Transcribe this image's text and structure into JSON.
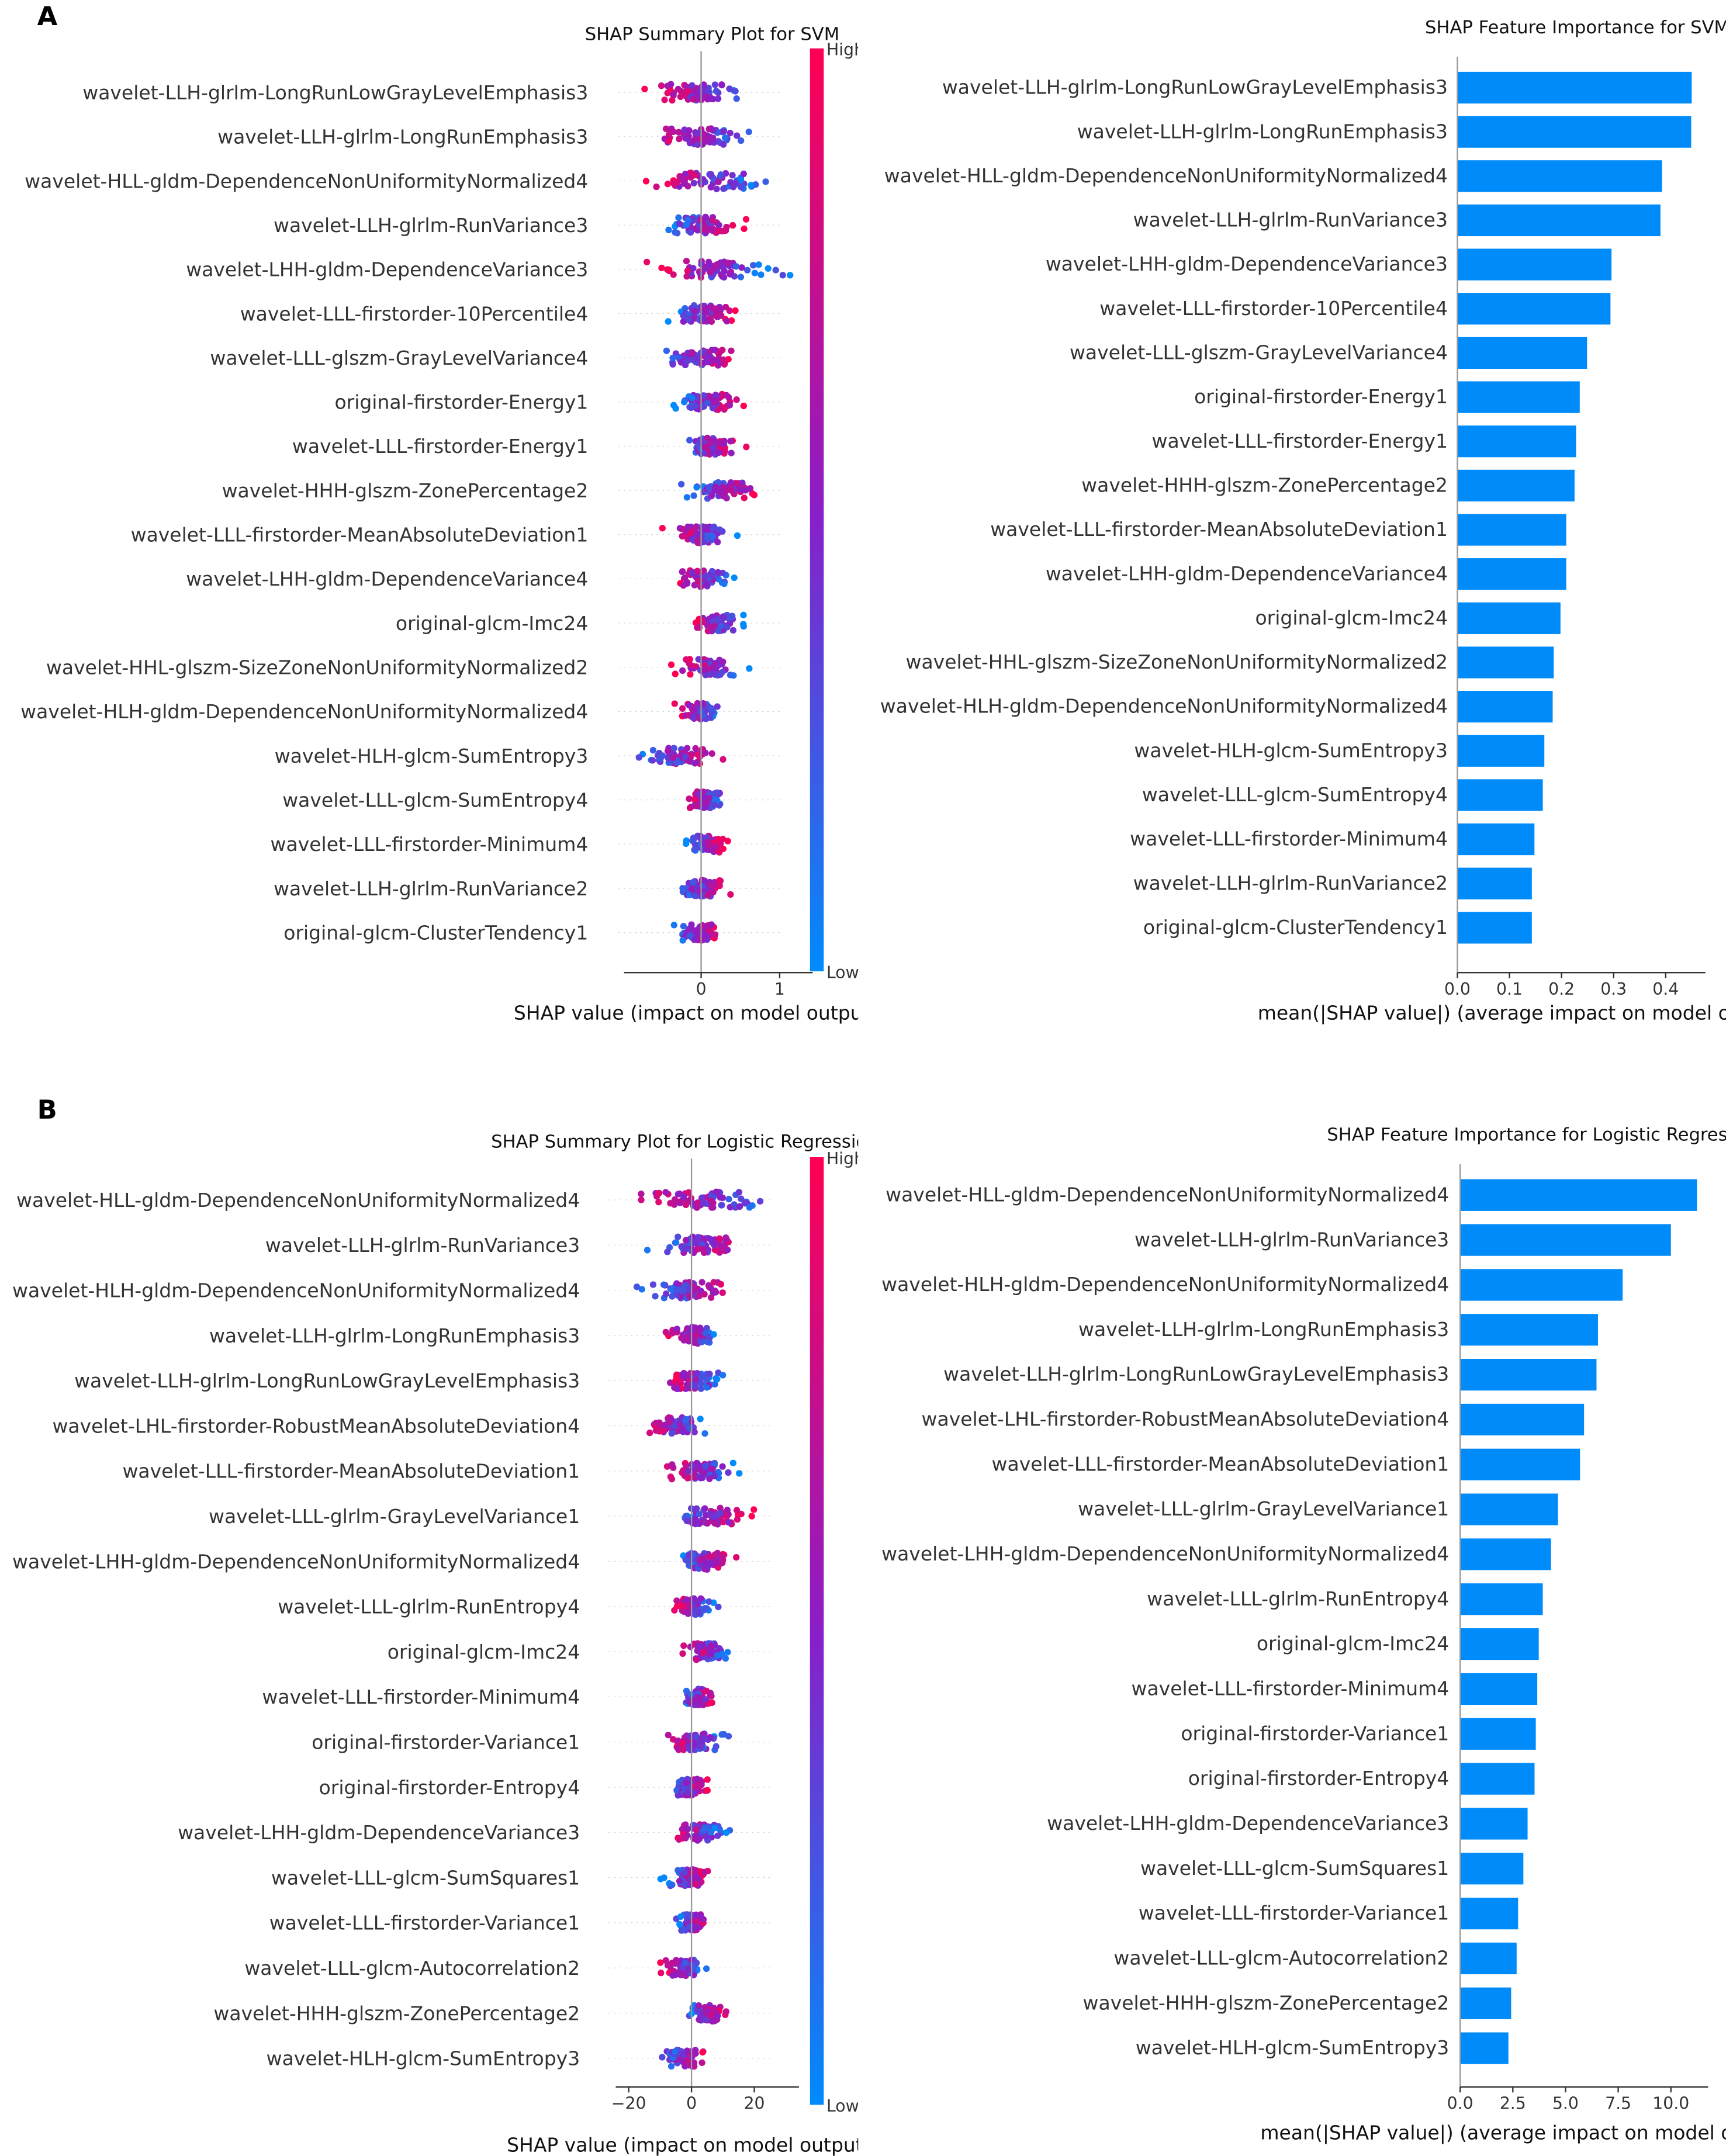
{
  "colors": {
    "low": "#008bfb",
    "mid": "#8a1ec8",
    "high": "#ff0052",
    "bar": "#008bfb"
  },
  "chart_data": [
    {
      "panel": "A",
      "type": "scatter",
      "title": "SHAP Summary Plot for SVM",
      "xlabel": "SHAP value (impact on model output)",
      "xlim": [
        -1,
        1.3
      ],
      "ticks": [
        "0",
        "1"
      ],
      "tick_values": [
        0,
        1
      ],
      "colorbar": {
        "high": "High",
        "low": "Low"
      },
      "features": [
        "wavelet-LLH-glrlm-LongRunLowGrayLevelEmphasis3",
        "wavelet-LLH-glrlm-LongRunEmphasis3",
        "wavelet-HLL-gldm-DependenceNonUniformityNormalized4",
        "wavelet-LLH-glrlm-RunVariance3",
        "wavelet-LHH-gldm-DependenceVariance3",
        "wavelet-LLL-firstorder-10Percentile4",
        "wavelet-LLL-glszm-GrayLevelVariance4",
        "original-firstorder-Energy1",
        "wavelet-LLL-firstorder-Energy1",
        "wavelet-HHH-glszm-ZonePercentage2",
        "wavelet-LLL-firstorder-MeanAbsoluteDeviation1",
        "wavelet-LHH-gldm-DependenceVariance4",
        "original-glcm-Imc24",
        "wavelet-HHL-glszm-SizeZoneNonUniformityNormalized2",
        "wavelet-HLH-gldm-DependenceNonUniformityNormalized4",
        "wavelet-HLH-glcm-SumEntropy3",
        "wavelet-LLL-glcm-SumEntropy4",
        "wavelet-LLL-firstorder-Minimum4",
        "wavelet-LLH-glrlm-RunVariance2",
        "original-glcm-ClusterTendency1"
      ],
      "ranges": [
        [
          -0.72,
          0.67
        ],
        [
          -0.72,
          0.67
        ],
        [
          -0.75,
          1.0
        ],
        [
          -0.6,
          0.65
        ],
        [
          -0.8,
          1.15
        ],
        [
          -0.5,
          0.55
        ],
        [
          -0.6,
          0.5
        ],
        [
          -0.4,
          0.6
        ],
        [
          -0.4,
          0.6
        ],
        [
          -0.3,
          0.9
        ],
        [
          -0.5,
          0.5
        ],
        [
          -0.45,
          0.5
        ],
        [
          -0.2,
          0.55
        ],
        [
          -0.45,
          0.65
        ],
        [
          -0.35,
          0.35
        ],
        [
          -0.9,
          0.35
        ],
        [
          -0.25,
          0.35
        ],
        [
          -0.2,
          0.35
        ],
        [
          -0.4,
          0.45
        ],
        [
          -0.45,
          0.35
        ]
      ],
      "high_side": [
        "neg",
        "neg",
        "neg",
        "pos",
        "neg",
        "pos",
        "pos",
        "pos",
        "pos",
        "pos",
        "neg",
        "neg",
        "neg",
        "neg",
        "neg",
        "pos",
        "neg",
        "pos",
        "pos",
        "pos"
      ]
    },
    {
      "panel": "A",
      "type": "bar",
      "title": "SHAP Feature Importance for SVM",
      "xlabel": "mean(|SHAP value|) (average impact on model output magnitude)",
      "xlim": [
        0,
        0.47
      ],
      "ticks": [
        "0.0",
        "0.1",
        "0.2",
        "0.3",
        "0.4"
      ],
      "tick_values": [
        0,
        0.1,
        0.2,
        0.3,
        0.4
      ],
      "features": [
        "wavelet-LLH-glrlm-LongRunLowGrayLevelEmphasis3",
        "wavelet-LLH-glrlm-LongRunEmphasis3",
        "wavelet-HLL-gldm-DependenceNonUniformityNormalized4",
        "wavelet-LLH-glrlm-RunVariance3",
        "wavelet-LHH-gldm-DependenceVariance3",
        "wavelet-LLL-firstorder-10Percentile4",
        "wavelet-LLL-glszm-GrayLevelVariance4",
        "original-firstorder-Energy1",
        "wavelet-LLL-firstorder-Energy1",
        "wavelet-HHH-glszm-ZonePercentage2",
        "wavelet-LLL-firstorder-MeanAbsoluteDeviation1",
        "wavelet-LHH-gldm-DependenceVariance4",
        "original-glcm-Imc24",
        "wavelet-HHL-glszm-SizeZoneNonUniformityNormalized2",
        "wavelet-HLH-gldm-DependenceNonUniformityNormalized4",
        "wavelet-HLH-glcm-SumEntropy3",
        "wavelet-LLL-glcm-SumEntropy4",
        "wavelet-LLL-firstorder-Minimum4",
        "wavelet-LLH-glrlm-RunVariance2",
        "original-glcm-ClusterTendency1"
      ],
      "values": [
        0.45,
        0.449,
        0.393,
        0.39,
        0.296,
        0.294,
        0.249,
        0.235,
        0.228,
        0.225,
        0.209,
        0.209,
        0.198,
        0.185,
        0.183,
        0.167,
        0.164,
        0.148,
        0.143,
        0.143
      ]
    },
    {
      "panel": "B",
      "type": "scatter",
      "title": "SHAP Summary Plot for Logistic Regression",
      "xlabel": "SHAP value (impact on model output)",
      "xlim": [
        -25,
        33
      ],
      "ticks": [
        "−20",
        "0",
        "20"
      ],
      "tick_values": [
        -20,
        0,
        20
      ],
      "colorbar": {
        "high": "High",
        "low": "Low"
      },
      "features": [
        "wavelet-HLL-gldm-DependenceNonUniformityNormalized4",
        "wavelet-LLH-glrlm-RunVariance3",
        "wavelet-HLH-gldm-DependenceNonUniformityNormalized4",
        "wavelet-LLH-glrlm-LongRunEmphasis3",
        "wavelet-LLH-glrlm-LongRunLowGrayLevelEmphasis3",
        "wavelet-LHL-firstorder-RobustMeanAbsoluteDeviation4",
        "wavelet-LLL-firstorder-MeanAbsoluteDeviation1",
        "wavelet-LLL-glrlm-GrayLevelVariance1",
        "wavelet-LHH-gldm-DependenceNonUniformityNormalized4",
        "wavelet-LLL-glrlm-RunEntropy4",
        "original-glcm-Imc24",
        "wavelet-LLL-firstorder-Minimum4",
        "original-firstorder-Variance1",
        "original-firstorder-Entropy4",
        "wavelet-LHH-gldm-DependenceVariance3",
        "wavelet-LLL-glcm-SumSquares1",
        "wavelet-LLL-firstorder-Variance1",
        "wavelet-LLL-glcm-Autocorrelation2",
        "wavelet-HHH-glszm-ZonePercentage2",
        "wavelet-HLH-glcm-SumEntropy3"
      ],
      "ranges": [
        [
          -22,
          32
        ],
        [
          -16,
          20
        ],
        [
          -18,
          18
        ],
        [
          -10,
          12
        ],
        [
          -10,
          12
        ],
        [
          -19,
          9
        ],
        [
          -12,
          18
        ],
        [
          -8,
          20
        ],
        [
          -6,
          15
        ],
        [
          -8,
          10
        ],
        [
          -3,
          13
        ],
        [
          -5,
          10
        ],
        [
          -10,
          12
        ],
        [
          -7,
          6
        ],
        [
          -9,
          13
        ],
        [
          -10,
          7
        ],
        [
          -7,
          7
        ],
        [
          -11,
          6
        ],
        [
          -3,
          12
        ],
        [
          -11,
          5
        ]
      ],
      "high_side": [
        "neg",
        "pos",
        "pos",
        "neg",
        "neg",
        "neg",
        "neg",
        "pos",
        "pos",
        "neg",
        "neg",
        "pos",
        "neg",
        "pos",
        "neg",
        "pos",
        "pos",
        "neg",
        "pos",
        "pos"
      ]
    },
    {
      "panel": "B",
      "type": "bar",
      "title": "SHAP Feature Importance for Logistic Regression",
      "xlabel": "mean(|SHAP value|) (average impact on model output magnitude)",
      "xlim": [
        0,
        11.8
      ],
      "ticks": [
        "0.0",
        "2.5",
        "5.0",
        "7.5",
        "10.0"
      ],
      "tick_values": [
        0,
        2.5,
        5,
        7.5,
        10
      ],
      "features": [
        "wavelet-HLL-gldm-DependenceNonUniformityNormalized4",
        "wavelet-LLH-glrlm-RunVariance3",
        "wavelet-HLH-gldm-DependenceNonUniformityNormalized4",
        "wavelet-LLH-glrlm-LongRunEmphasis3",
        "wavelet-LLH-glrlm-LongRunLowGrayLevelEmphasis3",
        "wavelet-LHL-firstorder-RobustMeanAbsoluteDeviation4",
        "wavelet-LLL-firstorder-MeanAbsoluteDeviation1",
        "wavelet-LLL-glrlm-GrayLevelVariance1",
        "wavelet-LHH-gldm-DependenceNonUniformityNormalized4",
        "wavelet-LLL-glrlm-RunEntropy4",
        "original-glcm-Imc24",
        "wavelet-LLL-firstorder-Minimum4",
        "original-firstorder-Variance1",
        "original-firstorder-Entropy4",
        "wavelet-LHH-gldm-DependenceVariance3",
        "wavelet-LLL-glcm-SumSquares1",
        "wavelet-LLL-firstorder-Variance1",
        "wavelet-LLL-glcm-Autocorrelation2",
        "wavelet-HHH-glszm-ZonePercentage2",
        "wavelet-HLH-glcm-SumEntropy3"
      ],
      "values": [
        11.24,
        10.0,
        7.71,
        6.54,
        6.47,
        5.88,
        5.69,
        4.64,
        4.31,
        3.92,
        3.73,
        3.66,
        3.59,
        3.53,
        3.2,
        3.0,
        2.75,
        2.68,
        2.42,
        2.29
      ]
    }
  ]
}
